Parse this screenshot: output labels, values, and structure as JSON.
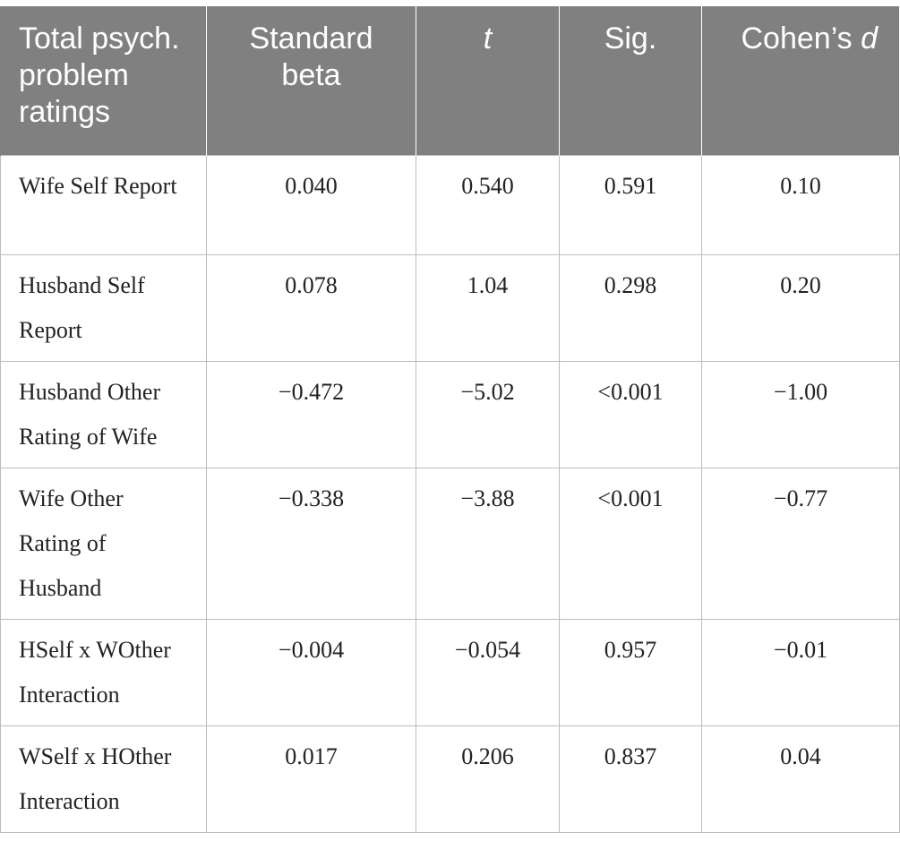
{
  "table": {
    "headers": {
      "col0": "Total psych. problem ratings",
      "col1": "Standard beta",
      "col2": "t",
      "col3": "Sig.",
      "col4_prefix": "Cohen’s ",
      "col4_italic": "d"
    },
    "rows": [
      {
        "label": "Wife Self Report",
        "beta": "0.040",
        "t": "0.540",
        "sig": "0.591",
        "d": "0.10"
      },
      {
        "label": "Husband Self Report",
        "beta": "0.078",
        "t": "1.04",
        "sig": "0.298",
        "d": "0.20"
      },
      {
        "label": "Husband Other Rating of Wife",
        "beta": "−0.472",
        "t": "−5.02",
        "sig": "<0.001",
        "d": "−1.00"
      },
      {
        "label": "Wife Other Rating of Husband",
        "beta": "−0.338",
        "t": "−3.88",
        "sig": "<0.001",
        "d": "−0.77"
      },
      {
        "label": "HSelf x WOther Interaction",
        "beta": "−0.004",
        "t": "−0.054",
        "sig": "0.957",
        "d": "−0.01"
      },
      {
        "label": "WSelf x HOther Interaction",
        "beta": "0.017",
        "t": "0.206",
        "sig": "0.837",
        "d": "0.04"
      }
    ]
  }
}
